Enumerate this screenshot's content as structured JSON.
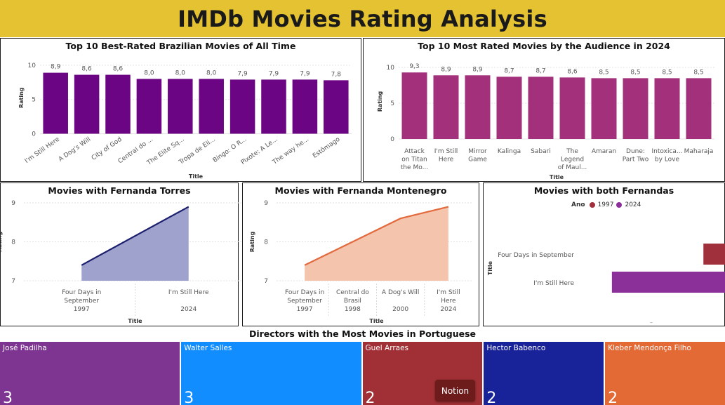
{
  "page_title": "IMDb Movies Rating Analysis",
  "colors": {
    "header_bg": "#e4c231",
    "chart1_bar": "#6b0583",
    "chart2_bar": "#a3307b",
    "torres_line": "#1b1f6e",
    "torres_fill": "#9ea2cc",
    "montenegro_line": "#e36a3e",
    "montenegro_fill": "#f4c4ad",
    "year_1997": "#a0303c",
    "year_2024": "#8a3098"
  },
  "notion_badge": "Notion",
  "chart_data": [
    {
      "id": "top_brazilian",
      "type": "bar",
      "title": "Top 10 Best-Rated Brazilian Movies of All Time",
      "xlabel": "Title",
      "ylabel": "Rating",
      "categories": [
        "I'm Still Here",
        "A Dog's Will",
        "City of God",
        "Central do ...",
        "The Elite Sq...",
        "Tropa de Eli...",
        "Bingo: O R...",
        "Pixote: A Le...",
        "The way he...",
        "Estômago"
      ],
      "values": [
        8.9,
        8.6,
        8.6,
        8.0,
        8.0,
        8.0,
        7.9,
        7.9,
        7.9,
        7.8
      ],
      "data_labels": [
        "8,9",
        "8,6",
        "8,6",
        "8,0",
        "8,0",
        "8,0",
        "7,9",
        "7,9",
        "7,9",
        "7,8"
      ],
      "yticks": [
        0,
        5,
        10
      ],
      "ylim": [
        0,
        10.5
      ]
    },
    {
      "id": "top_2024",
      "type": "bar",
      "title": "Top 10 Most Rated Movies by the Audience in 2024",
      "xlabel": "Title",
      "ylabel": "Rating",
      "categories": [
        "Attack on Titan the Mo...",
        "I'm Still Here",
        "Mirror Game",
        "Kalinga",
        "Sabari",
        "The Legend of Maul...",
        "Amaran",
        "Dune: Part Two",
        "Intoxica... by Love",
        "Maharaja"
      ],
      "category_lines": [
        [
          "Attack",
          "on Titan",
          "the Mo..."
        ],
        [
          "I'm Still",
          "Here"
        ],
        [
          "Mirror",
          "Game"
        ],
        [
          "Kalinga"
        ],
        [
          "Sabari"
        ],
        [
          "The",
          "Legend",
          "of Maul..."
        ],
        [
          "Amaran"
        ],
        [
          "Dune:",
          "Part Two"
        ],
        [
          "Intoxica...",
          "by Love"
        ],
        [
          "Maharaja"
        ]
      ],
      "values": [
        9.3,
        8.9,
        8.9,
        8.7,
        8.7,
        8.6,
        8.5,
        8.5,
        8.5,
        8.5
      ],
      "data_labels": [
        "9,3",
        "8,9",
        "8,9",
        "8,7",
        "8,7",
        "8,6",
        "8,5",
        "8,5",
        "8,5",
        "8,5"
      ],
      "yticks": [
        0,
        5,
        10
      ],
      "ylim": [
        0,
        10.5
      ]
    },
    {
      "id": "fernanda_torres",
      "type": "area",
      "title": "Movies with Fernanda Torres",
      "xlabel": "Title",
      "ylabel": "Rating",
      "categories": [
        [
          "Four Days in",
          "September"
        ],
        [
          "I'm Still Here"
        ]
      ],
      "years": [
        "1997",
        "2024"
      ],
      "values": [
        7.4,
        8.9
      ],
      "yticks": [
        7,
        8,
        9
      ],
      "ylim": [
        7,
        9
      ]
    },
    {
      "id": "fernanda_montenegro",
      "type": "area",
      "title": "Movies with Fernanda Montenegro",
      "xlabel": "Title",
      "ylabel": "Rating",
      "categories": [
        [
          "Four Days in",
          "September"
        ],
        [
          "Central do",
          "Brasil"
        ],
        [
          "A Dog's Will"
        ],
        [
          "I'm Still",
          "Here"
        ]
      ],
      "years": [
        "1997",
        "1998",
        "2000",
        "2024"
      ],
      "values": [
        7.4,
        8.0,
        8.6,
        8.9
      ],
      "yticks": [
        7,
        8,
        9
      ],
      "ylim": [
        7,
        9
      ]
    },
    {
      "id": "both_fernandas",
      "type": "bar",
      "orientation": "horizontal",
      "title": "Movies with both Fernandas",
      "ylabel": "Title",
      "legend": {
        "title": "Ano",
        "items": [
          "1997",
          "2024"
        ],
        "placement": "top"
      },
      "categories": [
        "Four Days in September",
        "I'm Still Here"
      ],
      "series": [
        {
          "name": "1997",
          "values": [
            7.4,
            null
          ]
        },
        {
          "name": "2024",
          "values": [
            null,
            8.9
          ]
        }
      ],
      "axis_placeholder": "–"
    },
    {
      "id": "directors",
      "type": "treemap",
      "title": "Directors with the Most Movies in Portuguese",
      "categories": [
        "José Padilha",
        "Walter Salles",
        "Guel Arraes",
        "Hector Babenco",
        "Kleber Mendonça Filho"
      ],
      "values": [
        3,
        3,
        2,
        2,
        2
      ],
      "colors": [
        "#7e3591",
        "#118dff",
        "#a03035",
        "#18239a",
        "#e36a35"
      ]
    }
  ]
}
